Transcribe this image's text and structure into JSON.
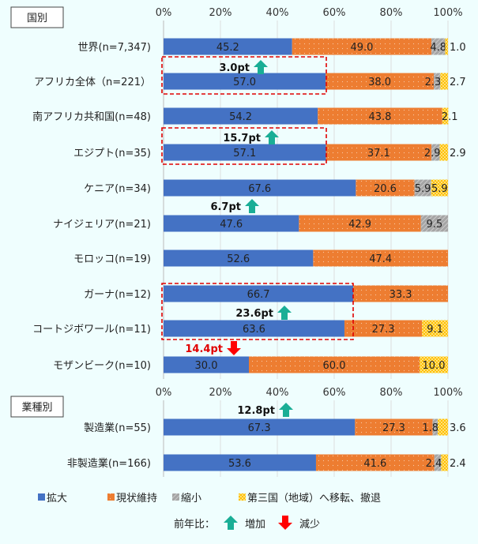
{
  "colors": {
    "expand": "#4472c4",
    "maintain": "#ed7d31",
    "shrink": "#a5a5a5",
    "relocate": "#ffc000",
    "up": "#1aae96",
    "down": "#ff0000",
    "highlight": "#e00000",
    "background": "#effefe"
  },
  "chart_data": [
    {
      "type": "bar",
      "stacked": true,
      "orientation": "horizontal",
      "section_label": "国別",
      "xlim": [
        0,
        100
      ],
      "tick_labels": [
        "0%",
        "20%",
        "40%",
        "60%",
        "80%",
        "100%"
      ],
      "grid": true,
      "categories": [
        "世界(n=7,347)",
        "アフリカ全体（n=221）",
        "南アフリカ共和国(n=48)",
        "エジプト(n=35)",
        "ケニア(n=34)",
        "ナイジェリア(n=21)",
        "モロッコ(n=19)",
        "ガーナ(n=12)",
        "コートジボワール(n=11)",
        "モザンビーク(n=10)"
      ],
      "series": [
        {
          "name": "拡大",
          "values": [
            45.2,
            57.0,
            54.2,
            57.1,
            67.6,
            47.6,
            52.6,
            66.7,
            63.6,
            30.0
          ]
        },
        {
          "name": "現状維持",
          "values": [
            49.0,
            38.0,
            43.8,
            37.1,
            20.6,
            42.9,
            47.4,
            33.3,
            27.3,
            60.0
          ]
        },
        {
          "name": "縮小",
          "values": [
            4.8,
            2.3,
            0,
            2.9,
            5.9,
            9.5,
            0,
            0,
            0,
            0
          ]
        },
        {
          "name": "第三国（地域）へ移転、撤退",
          "values": [
            1.0,
            2.7,
            2.1,
            2.9,
            5.9,
            0,
            0,
            0,
            9.1,
            10.0
          ]
        }
      ],
      "annotations": [
        {
          "category": "アフリカ全体（n=221）",
          "text": "3.0pt",
          "direction": "up"
        },
        {
          "category": "エジプト(n=35)",
          "text": "15.7pt",
          "direction": "up"
        },
        {
          "category": "ナイジェリア(n=21)",
          "text": "6.7pt",
          "direction": "up"
        },
        {
          "category": "コートジボワール(n=11)",
          "text": "23.6pt",
          "direction": "up"
        },
        {
          "category": "モザンビーク(n=10)",
          "text": "14.4pt",
          "direction": "down"
        }
      ]
    },
    {
      "type": "bar",
      "stacked": true,
      "orientation": "horizontal",
      "section_label": "業種別",
      "xlim": [
        0,
        100
      ],
      "tick_labels": [
        "0%",
        "20%",
        "40%",
        "60%",
        "80%",
        "100%"
      ],
      "grid": true,
      "categories": [
        "製造業(n=55)",
        "非製造業(n=166)"
      ],
      "series": [
        {
          "name": "拡大",
          "values": [
            67.3,
            53.6
          ]
        },
        {
          "name": "現状維持",
          "values": [
            27.3,
            41.6
          ]
        },
        {
          "name": "縮小",
          "values": [
            1.8,
            2.4
          ]
        },
        {
          "name": "第三国（地域）へ移転、撤退",
          "values": [
            3.6,
            2.4
          ]
        }
      ],
      "annotations": [
        {
          "category": "製造業(n=55)",
          "text": "12.8pt",
          "direction": "up"
        }
      ]
    }
  ],
  "legend": {
    "items": [
      "拡大",
      "現状維持",
      "縮小",
      "第三国（地域）へ移転、撤退"
    ],
    "placement": "bottom",
    "yoy_label": "前年比：",
    "up_label": "増加",
    "down_label": "減少"
  }
}
